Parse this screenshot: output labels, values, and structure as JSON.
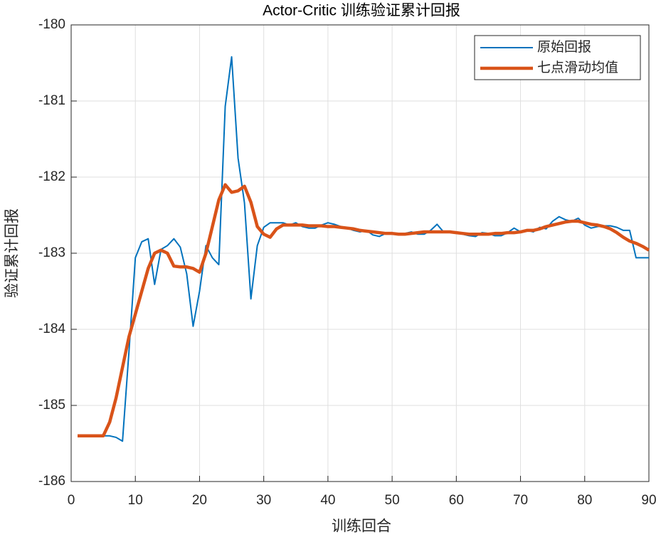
{
  "chart_data": {
    "type": "line",
    "title": "Actor-Critic 训练验证累计回报",
    "x_label": "训练回合",
    "y_label": "验证累计回报",
    "x": [
      1,
      2,
      3,
      4,
      5,
      6,
      7,
      8,
      9,
      10,
      11,
      12,
      13,
      14,
      15,
      16,
      17,
      18,
      19,
      20,
      21,
      22,
      23,
      24,
      25,
      26,
      27,
      28,
      29,
      30,
      31,
      32,
      33,
      34,
      35,
      36,
      37,
      38,
      39,
      40,
      41,
      42,
      43,
      44,
      45,
      46,
      47,
      48,
      49,
      50,
      51,
      52,
      53,
      54,
      55,
      56,
      57,
      58,
      59,
      60,
      61,
      62,
      63,
      64,
      65,
      66,
      67,
      68,
      69,
      70,
      71,
      72,
      73,
      74,
      75,
      76,
      77,
      78,
      79,
      80,
      81,
      82,
      83,
      84,
      85,
      86,
      87,
      88,
      89,
      90
    ],
    "series": [
      {
        "name": "原始回报",
        "color": "#0072bd",
        "values": [
          -185.4,
          -185.4,
          -185.4,
          -185.4,
          -185.4,
          -185.4,
          -185.42,
          -185.47,
          -184.3,
          -183.06,
          -182.85,
          -182.81,
          -183.41,
          -182.95,
          -182.9,
          -182.81,
          -182.92,
          -183.27,
          -183.96,
          -183.5,
          -182.9,
          -183.06,
          -183.15,
          -181.07,
          -180.42,
          -181.75,
          -182.34,
          -183.6,
          -182.9,
          -182.66,
          -182.6,
          -182.6,
          -182.6,
          -182.63,
          -182.6,
          -182.65,
          -182.67,
          -182.67,
          -182.63,
          -182.6,
          -182.62,
          -182.65,
          -182.67,
          -182.7,
          -182.72,
          -182.7,
          -182.76,
          -182.78,
          -182.74,
          -182.75,
          -182.75,
          -182.74,
          -182.72,
          -182.75,
          -182.75,
          -182.7,
          -182.62,
          -182.72,
          -182.72,
          -182.73,
          -182.75,
          -182.77,
          -182.78,
          -182.73,
          -182.74,
          -182.77,
          -182.77,
          -182.73,
          -182.67,
          -182.72,
          -182.7,
          -182.72,
          -182.66,
          -182.68,
          -182.58,
          -182.52,
          -182.56,
          -182.58,
          -182.54,
          -182.63,
          -182.67,
          -182.65,
          -182.64,
          -182.64,
          -182.66,
          -182.7,
          -182.7,
          -183.06,
          -183.06,
          -183.06
        ]
      },
      {
        "name": "七点滑动均值",
        "color": "#d95319",
        "values": [
          -185.4,
          -185.4,
          -185.4,
          -185.4,
          -185.4,
          -185.22,
          -184.9,
          -184.5,
          -184.1,
          -183.8,
          -183.5,
          -183.2,
          -183.0,
          -182.96,
          -183.0,
          -183.17,
          -183.18,
          -183.18,
          -183.2,
          -183.25,
          -183.0,
          -182.65,
          -182.3,
          -182.1,
          -182.2,
          -182.18,
          -182.12,
          -182.33,
          -182.65,
          -182.75,
          -182.79,
          -182.68,
          -182.63,
          -182.63,
          -182.63,
          -182.63,
          -182.64,
          -182.64,
          -182.64,
          -182.65,
          -182.65,
          -182.66,
          -182.67,
          -182.68,
          -182.7,
          -182.71,
          -182.72,
          -182.73,
          -182.74,
          -182.74,
          -182.75,
          -182.75,
          -182.74,
          -182.73,
          -182.72,
          -182.72,
          -182.72,
          -182.72,
          -182.72,
          -182.73,
          -182.74,
          -182.75,
          -182.75,
          -182.75,
          -182.75,
          -182.74,
          -182.74,
          -182.73,
          -182.73,
          -182.72,
          -182.7,
          -182.7,
          -182.68,
          -182.65,
          -182.63,
          -182.61,
          -182.59,
          -182.58,
          -182.58,
          -182.6,
          -182.62,
          -182.63,
          -182.65,
          -182.68,
          -182.73,
          -182.79,
          -182.84,
          -182.87,
          -182.91,
          -182.96
        ]
      }
    ],
    "xlim": [
      0,
      90
    ],
    "xticks": [
      0,
      10,
      20,
      30,
      40,
      50,
      60,
      70,
      80,
      90
    ],
    "ylim": [
      -186,
      -180
    ],
    "yticks": [
      -180,
      -181,
      -182,
      -183,
      -184,
      -185,
      -186
    ],
    "grid": true,
    "legend": "northeast"
  }
}
